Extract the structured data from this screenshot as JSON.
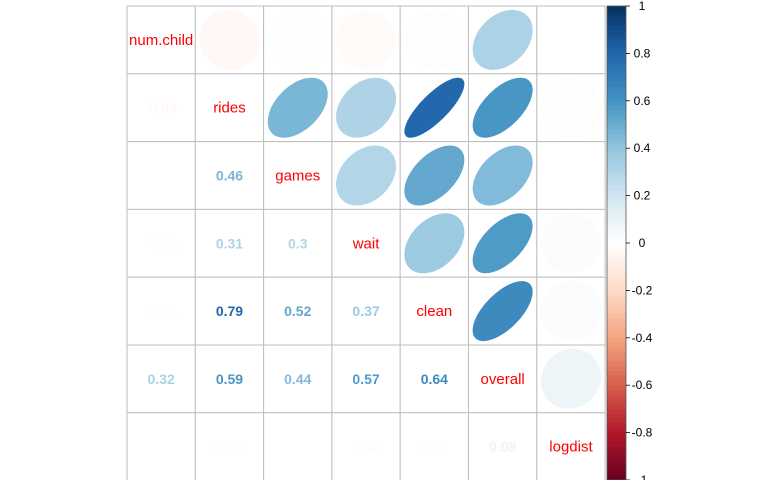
{
  "chart_data": {
    "type": "heatmap",
    "variables": [
      "num.child",
      "rides",
      "games",
      "wait",
      "clean",
      "overall",
      "logdist"
    ],
    "upper_method": "ellipse",
    "lower_method": "number",
    "diagonal": "variable names",
    "correlations": [
      [
        1.0,
        -0.04,
        0.01,
        -0.02,
        -0.01,
        0.32,
        0.0
      ],
      [
        -0.04,
        1.0,
        0.46,
        0.31,
        0.79,
        0.59,
        -0.01
      ],
      [
        0.01,
        0.46,
        1.0,
        0.3,
        0.52,
        0.44,
        0.0
      ],
      [
        -0.02,
        0.31,
        0.3,
        1.0,
        0.37,
        0.57,
        0.02
      ],
      [
        -0.01,
        0.79,
        0.52,
        0.37,
        1.0,
        0.64,
        0.02
      ],
      [
        0.32,
        0.59,
        0.44,
        0.57,
        0.64,
        1.0,
        0.08
      ],
      [
        0.0,
        -0.01,
        0.0,
        0.02,
        0.02,
        0.08,
        1.0
      ]
    ],
    "lower_labels": [
      [
        "",
        "",
        "",
        "",
        "",
        "",
        ""
      ],
      [
        "-0.04",
        "",
        "",
        "",
        "",
        "",
        ""
      ],
      [
        "",
        "0.46",
        "",
        "",
        "",
        "",
        ""
      ],
      [
        "-0.02",
        "0.31",
        "0.3",
        "",
        "",
        "",
        ""
      ],
      [
        "-0.01",
        "0.79",
        "0.52",
        "0.37",
        "",
        "",
        ""
      ],
      [
        "0.32",
        "0.59",
        "0.44",
        "0.57",
        "0.64",
        "",
        ""
      ],
      [
        "",
        "-0.01",
        "",
        "0.02",
        "0.02",
        "0.08",
        ""
      ]
    ],
    "legend": {
      "position": "right",
      "range": [
        -1,
        1
      ],
      "ticks": [
        "1",
        "0.8",
        "0.6",
        "0.4",
        "0.2",
        "0",
        "-0.2",
        "-0.4",
        "-0.6",
        "-0.8",
        "-1"
      ]
    },
    "colors": {
      "label": "#ff0000",
      "grid": "#bebebe",
      "palette": [
        "#67001f",
        "#b2182b",
        "#d6604d",
        "#f4a582",
        "#fddbc7",
        "#ffffff",
        "#d1e5f0",
        "#92c5de",
        "#4393c3",
        "#2166ac",
        "#053061"
      ]
    }
  }
}
